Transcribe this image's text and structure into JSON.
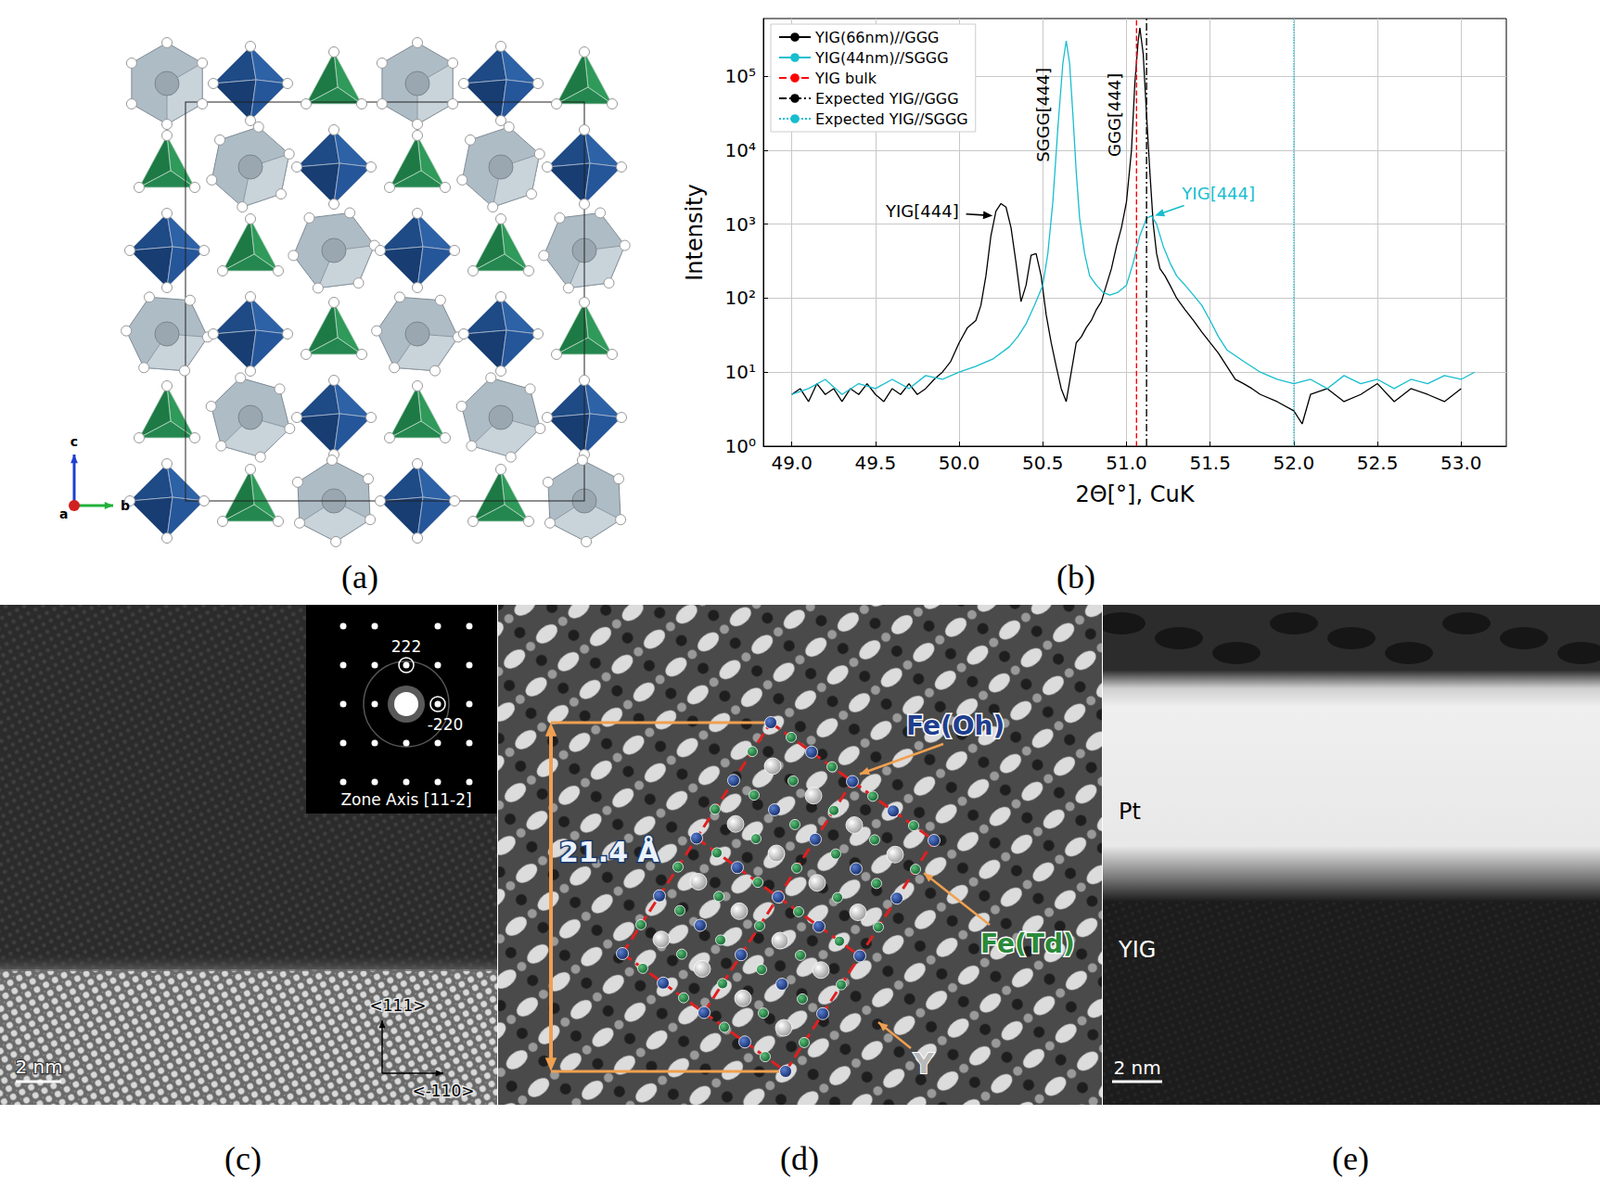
{
  "panel_labels": [
    "(a)",
    "(b)",
    "(c)",
    "(d)",
    "(e)"
  ],
  "crystal": {
    "axis_labels": {
      "x": "a",
      "y": "b",
      "z": "c"
    }
  },
  "chart_data": {
    "type": "line",
    "xlabel": "2Θ[°], CuK",
    "ylabel": "Intensity",
    "log": "y",
    "grid": true,
    "legend": "upper left",
    "xlim": [
      48.83,
      53.27
    ],
    "xticks": [
      {
        "value": 49,
        "label": "49.0"
      },
      {
        "value": 49.5,
        "label": "49.5"
      },
      {
        "value": 50,
        "label": "50.0"
      },
      {
        "value": 50.5,
        "label": "50.5"
      },
      {
        "value": 51,
        "label": "51.0"
      },
      {
        "value": 51.5,
        "label": "51.5"
      },
      {
        "value": 52,
        "label": "52.0"
      },
      {
        "value": 52.5,
        "label": "52.5"
      },
      {
        "value": 53,
        "label": "53.0"
      }
    ],
    "ylim": [
      1,
      600000
    ],
    "yticks": [
      {
        "value": 1,
        "label": "10⁰"
      },
      {
        "value": 10,
        "label": "10¹"
      },
      {
        "value": 100,
        "label": "10²"
      },
      {
        "value": 1000,
        "label": "10³"
      },
      {
        "value": 10000,
        "label": "10⁴"
      },
      {
        "value": 100000,
        "label": "10⁵"
      }
    ],
    "series": [
      {
        "name": "YIG(66nm)//GGG",
        "color": "#000000",
        "x": [
          49.0,
          49.05,
          49.1,
          49.15,
          49.2,
          49.25,
          49.3,
          49.35,
          49.4,
          49.45,
          49.5,
          49.55,
          49.6,
          49.65,
          49.7,
          49.75,
          49.8,
          49.85,
          49.9,
          49.95,
          50.0,
          50.05,
          50.1,
          50.13,
          50.16,
          50.19,
          50.22,
          50.25,
          50.28,
          50.31,
          50.34,
          50.37,
          50.4,
          50.43,
          50.46,
          50.49,
          50.52,
          50.55,
          50.58,
          50.61,
          50.64,
          50.67,
          50.7,
          50.73,
          50.76,
          50.79,
          50.82,
          50.85,
          50.88,
          50.91,
          50.94,
          50.97,
          51.0,
          51.03,
          51.05,
          51.07,
          51.08,
          51.1,
          51.12,
          51.14,
          51.16,
          51.18,
          51.2,
          51.23,
          51.26,
          51.3,
          51.35,
          51.4,
          51.45,
          51.5,
          51.55,
          51.6,
          51.65,
          51.7,
          51.75,
          51.8,
          51.9,
          52.0,
          52.05,
          52.1,
          52.2,
          52.3,
          52.4,
          52.5,
          52.6,
          52.7,
          52.8,
          52.9,
          53.0
        ],
        "values": [
          5,
          6,
          4,
          7,
          5,
          6,
          4,
          6,
          5,
          7,
          5,
          4,
          6,
          5,
          7,
          5,
          6,
          8,
          10,
          14,
          25,
          40,
          50,
          80,
          200,
          700,
          1500,
          1900,
          1700,
          900,
          300,
          90,
          150,
          380,
          400,
          200,
          60,
          25,
          12,
          6,
          4,
          10,
          25,
          30,
          40,
          50,
          70,
          90,
          150,
          250,
          500,
          900,
          2000,
          10000,
          80000,
          300000,
          450000,
          200000,
          30000,
          5000,
          1000,
          400,
          250,
          200,
          150,
          100,
          70,
          50,
          35,
          25,
          18,
          12,
          8,
          7,
          6,
          5,
          4,
          3,
          2,
          5,
          6,
          4,
          5,
          7,
          4,
          6,
          5,
          4,
          6
        ]
      },
      {
        "name": "YIG(44nm)//SGGG",
        "color": "#17becf",
        "x": [
          49.0,
          49.1,
          49.2,
          49.3,
          49.4,
          49.5,
          49.6,
          49.7,
          49.8,
          49.9,
          50.0,
          50.1,
          50.2,
          50.3,
          50.35,
          50.4,
          50.45,
          50.5,
          50.53,
          50.56,
          50.59,
          50.62,
          50.64,
          50.66,
          50.68,
          50.7,
          50.72,
          50.75,
          50.78,
          50.82,
          50.86,
          50.9,
          50.95,
          51.0,
          51.04,
          51.08,
          51.12,
          51.15,
          51.18,
          51.22,
          51.26,
          51.3,
          51.35,
          51.4,
          51.45,
          51.5,
          51.55,
          51.6,
          51.7,
          51.8,
          51.9,
          52.0,
          52.1,
          52.2,
          52.3,
          52.4,
          52.5,
          52.6,
          52.7,
          52.8,
          52.9,
          53.0,
          53.08
        ],
        "values": [
          5,
          6,
          8,
          5,
          7,
          6,
          8,
          6,
          9,
          8,
          10,
          12,
          15,
          22,
          30,
          45,
          80,
          150,
          400,
          2000,
          20000,
          150000,
          300000,
          150000,
          30000,
          5000,
          1200,
          400,
          200,
          150,
          120,
          110,
          120,
          150,
          300,
          700,
          1200,
          1300,
          1000,
          500,
          300,
          200,
          150,
          110,
          80,
          50,
          30,
          20,
          14,
          10,
          8,
          7,
          8,
          6,
          9,
          7,
          8,
          6,
          8,
          7,
          9,
          8,
          10
        ]
      }
    ],
    "vlines": [
      {
        "name": "YIG bulk",
        "x": 51.06,
        "color": "#ff0000",
        "line_style": "dashed"
      },
      {
        "name": "Expected YIG//GGG",
        "x": 51.12,
        "color": "#000000",
        "line_style": "dashdot"
      },
      {
        "name": "Expected YIG//SGGG",
        "x": 52.0,
        "color": "#17becf",
        "line_style": "dotted"
      }
    ],
    "annotations": [
      {
        "text": "YIG[444]",
        "x": 49.78,
        "y": 1500,
        "arrow_to": [
          50.2,
          1300
        ],
        "color": "#000000"
      },
      {
        "text": "YIG[444]",
        "x": 51.55,
        "y": 2600,
        "arrow_to": [
          51.17,
          1300
        ],
        "color": "#17becf"
      },
      {
        "text": "SGGG[444]",
        "x": 50.5,
        "y": 30000,
        "orientation": "vertical",
        "color": "#000000"
      },
      {
        "text": "GGG[444]",
        "x": 50.93,
        "y": 30000,
        "orientation": "vertical",
        "color": "#000000"
      }
    ]
  },
  "tem_c": {
    "inset": {
      "spot_vertical": "222",
      "spot_horizontal": "-220",
      "zone_axis": "Zone Axis [11-2]"
    },
    "directions": {
      "vertical": "<111>",
      "horizontal": "<-110>"
    },
    "scale_bar": "2 nm"
  },
  "tem_d": {
    "dimension": "21.4 Å",
    "sites": {
      "octahedral": "Fe(Oh)",
      "tetrahedral": "Fe(Td)",
      "dodecahedral": "Y"
    }
  },
  "tem_e": {
    "layers": {
      "top": "Pt",
      "bottom": "YIG"
    },
    "scale_bar": "2 nm"
  }
}
